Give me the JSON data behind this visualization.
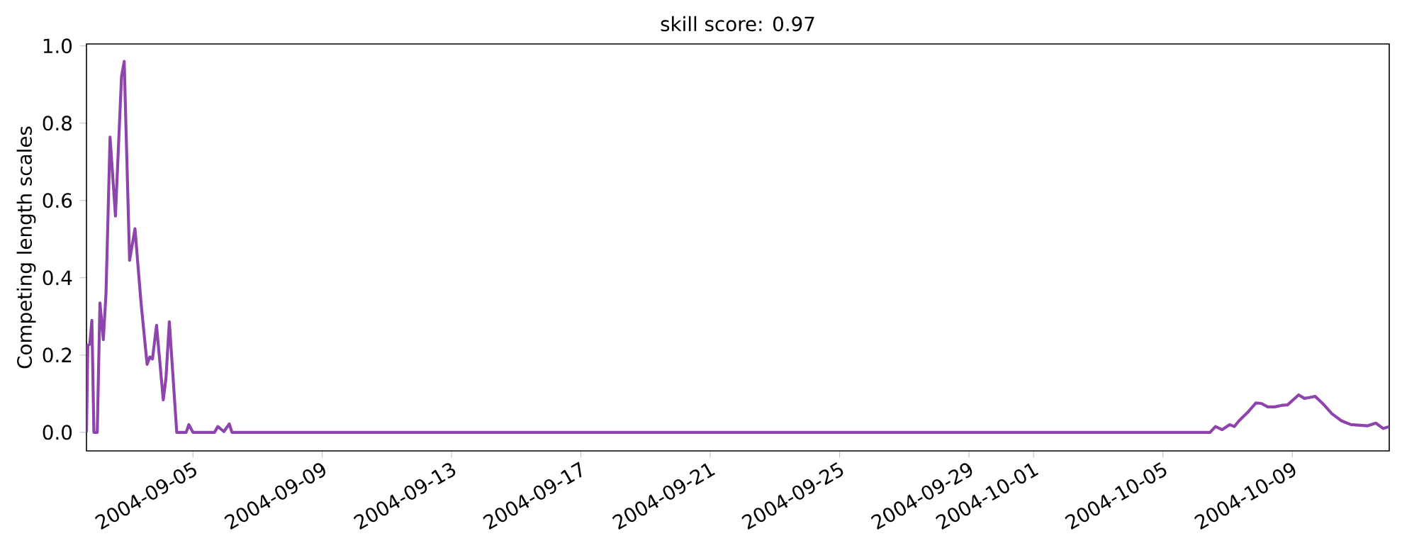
{
  "chart_data": {
    "type": "line",
    "title": "skill score: 0.97",
    "ylabel": "Competing length scales",
    "x": [
      "2004-09-01T17:00",
      "2004-09-01T18:00",
      "2004-09-01T19:30",
      "2004-09-01T21:00",
      "2004-09-01T22:30",
      "2004-09-02T01:00",
      "2004-09-02T03:00",
      "2004-09-02T05:30",
      "2004-09-02T07:30",
      "2004-09-02T10:30",
      "2004-09-02T14:30",
      "2004-09-02T19:00",
      "2004-09-02T21:00",
      "2004-09-03T01:00",
      "2004-09-03T05:00",
      "2004-09-03T09:30",
      "2004-09-03T14:00",
      "2004-09-03T16:00",
      "2004-09-03T18:00",
      "2004-09-03T21:00",
      "2004-09-04T02:00",
      "2004-09-04T04:00",
      "2004-09-04T06:30",
      "2004-09-04T12:00",
      "2004-09-04T19:00",
      "2004-09-04T21:00",
      "2004-09-05T00:00",
      "2004-09-05T16:00",
      "2004-09-05T18:30",
      "2004-09-05T23:00",
      "2004-09-06T03:00",
      "2004-09-06T05:00",
      "2004-10-06T11:00",
      "2004-10-06T15:00",
      "2004-10-06T20:00",
      "2004-10-07T01:30",
      "2004-10-07T05:00",
      "2004-10-07T08:30",
      "2004-10-07T15:30",
      "2004-10-07T21:00",
      "2004-10-08T01:00",
      "2004-10-08T05:45",
      "2004-10-08T11:00",
      "2004-10-08T16:15",
      "2004-10-08T20:30",
      "2004-10-09T04:45",
      "2004-10-09T09:00",
      "2004-10-09T12:30",
      "2004-10-09T17:00",
      "2004-10-09T22:15",
      "2004-10-10T05:30",
      "2004-10-10T12:30",
      "2004-10-10T19:30",
      "2004-10-11T08:00",
      "2004-10-11T14:00",
      "2004-10-11T19:30",
      "2004-10-12T00:00"
    ],
    "series": [
      {
        "color": "#8e44ad",
        "values": [
          0.0,
          0.225,
          0.228,
          0.29,
          0.0,
          0.0,
          0.335,
          0.24,
          0.36,
          0.764,
          0.56,
          0.92,
          0.96,
          0.445,
          0.527,
          0.335,
          0.176,
          0.195,
          0.19,
          0.277,
          0.084,
          0.14,
          0.286,
          0.0,
          0.0,
          0.02,
          0.0,
          0.0,
          0.015,
          0.002,
          0.022,
          0.0,
          0.0,
          0.015,
          0.007,
          0.02,
          0.015,
          0.03,
          0.054,
          0.076,
          0.075,
          0.066,
          0.066,
          0.07,
          0.071,
          0.097,
          0.088,
          0.09,
          0.093,
          0.076,
          0.048,
          0.03,
          0.02,
          0.017,
          0.024,
          0.01,
          0.015
        ]
      }
    ],
    "xlim": [
      "2004-09-01T17:00",
      "2004-10-12T00:00"
    ],
    "xticks": [
      "2004-09-05",
      "2004-09-09",
      "2004-09-13",
      "2004-09-17",
      "2004-09-21",
      "2004-09-25",
      "2004-09-29",
      "2004-10-01",
      "2004-10-05",
      "2004-10-09"
    ],
    "ylim": [
      -0.048,
      1.005
    ],
    "yticks": [
      {
        "value": 0,
        "label": "0.0"
      },
      0.2,
      0.4,
      0.6,
      0.8,
      {
        "value": 1,
        "label": "1.0"
      }
    ],
    "grid": false,
    "marker": "none",
    "line_style": "solid"
  }
}
